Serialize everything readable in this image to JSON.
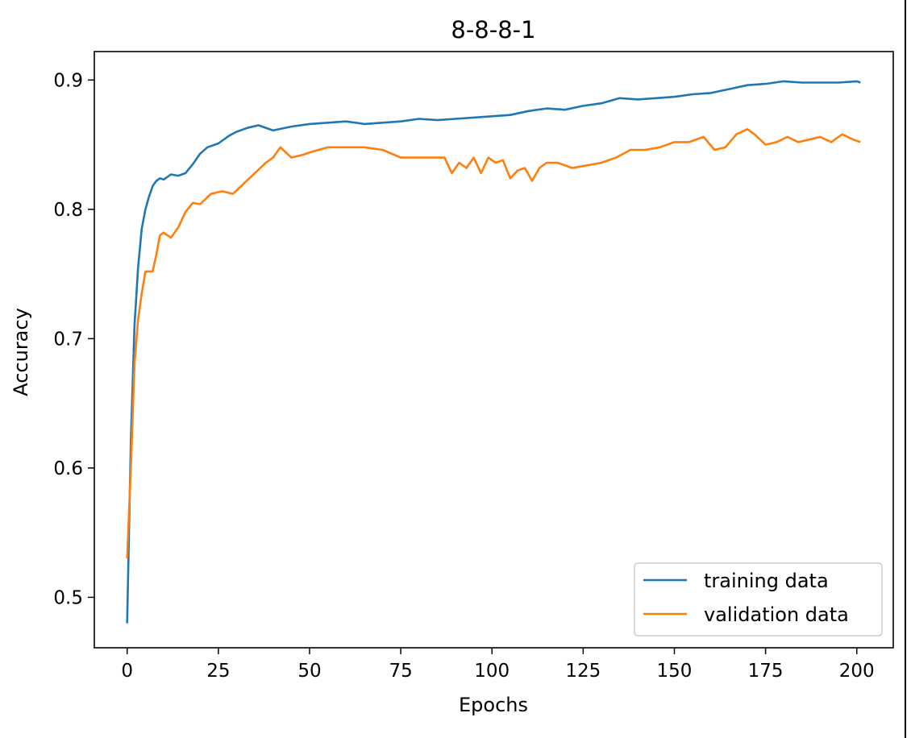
{
  "chart_data": {
    "type": "line",
    "title": "8-8-8-1",
    "xlabel": "Epochs",
    "ylabel": "Accuracy",
    "xlim": [
      -9,
      210
    ],
    "ylim": [
      0.461,
      0.922
    ],
    "xticks": [
      "0",
      "25",
      "50",
      "75",
      "100",
      "125",
      "150",
      "175",
      "200"
    ],
    "yticks": [
      "0.5",
      "0.6",
      "0.7",
      "0.8",
      "0.9"
    ],
    "legend_position": "lower-right",
    "colors": {
      "training": "#1f77b4",
      "validation": "#ff7f0e"
    },
    "series": [
      {
        "name": "training data",
        "points": [
          [
            0,
            0.48
          ],
          [
            1,
            0.62
          ],
          [
            2,
            0.71
          ],
          [
            3,
            0.755
          ],
          [
            4,
            0.785
          ],
          [
            5,
            0.8
          ],
          [
            6,
            0.81
          ],
          [
            7,
            0.818
          ],
          [
            8,
            0.822
          ],
          [
            9,
            0.824
          ],
          [
            10,
            0.823
          ],
          [
            12,
            0.827
          ],
          [
            14,
            0.826
          ],
          [
            16,
            0.828
          ],
          [
            18,
            0.835
          ],
          [
            20,
            0.843
          ],
          [
            22,
            0.848
          ],
          [
            25,
            0.851
          ],
          [
            28,
            0.857
          ],
          [
            30,
            0.86
          ],
          [
            33,
            0.863
          ],
          [
            36,
            0.865
          ],
          [
            40,
            0.861
          ],
          [
            45,
            0.864
          ],
          [
            50,
            0.866
          ],
          [
            55,
            0.867
          ],
          [
            60,
            0.868
          ],
          [
            65,
            0.866
          ],
          [
            70,
            0.867
          ],
          [
            75,
            0.868
          ],
          [
            80,
            0.87
          ],
          [
            85,
            0.869
          ],
          [
            90,
            0.87
          ],
          [
            95,
            0.871
          ],
          [
            100,
            0.872
          ],
          [
            105,
            0.873
          ],
          [
            110,
            0.876
          ],
          [
            115,
            0.878
          ],
          [
            120,
            0.877
          ],
          [
            125,
            0.88
          ],
          [
            130,
            0.882
          ],
          [
            135,
            0.886
          ],
          [
            140,
            0.885
          ],
          [
            145,
            0.886
          ],
          [
            150,
            0.887
          ],
          [
            155,
            0.889
          ],
          [
            160,
            0.89
          ],
          [
            165,
            0.893
          ],
          [
            170,
            0.896
          ],
          [
            175,
            0.897
          ],
          [
            180,
            0.899
          ],
          [
            185,
            0.898
          ],
          [
            190,
            0.898
          ],
          [
            195,
            0.898
          ],
          [
            200,
            0.899
          ],
          [
            201,
            0.898
          ]
        ]
      },
      {
        "name": "validation data",
        "points": [
          [
            0,
            0.53
          ],
          [
            1,
            0.6
          ],
          [
            2,
            0.68
          ],
          [
            3,
            0.715
          ],
          [
            4,
            0.735
          ],
          [
            5,
            0.752
          ],
          [
            6,
            0.752
          ],
          [
            7,
            0.752
          ],
          [
            8,
            0.765
          ],
          [
            9,
            0.78
          ],
          [
            10,
            0.782
          ],
          [
            12,
            0.778
          ],
          [
            14,
            0.786
          ],
          [
            16,
            0.798
          ],
          [
            18,
            0.805
          ],
          [
            20,
            0.804
          ],
          [
            23,
            0.812
          ],
          [
            26,
            0.814
          ],
          [
            29,
            0.812
          ],
          [
            32,
            0.82
          ],
          [
            35,
            0.828
          ],
          [
            38,
            0.836
          ],
          [
            40,
            0.84
          ],
          [
            42,
            0.848
          ],
          [
            45,
            0.84
          ],
          [
            48,
            0.842
          ],
          [
            50,
            0.844
          ],
          [
            55,
            0.848
          ],
          [
            60,
            0.848
          ],
          [
            65,
            0.848
          ],
          [
            70,
            0.846
          ],
          [
            75,
            0.84
          ],
          [
            80,
            0.84
          ],
          [
            85,
            0.84
          ],
          [
            87,
            0.84
          ],
          [
            89,
            0.828
          ],
          [
            91,
            0.836
          ],
          [
            93,
            0.832
          ],
          [
            95,
            0.84
          ],
          [
            97,
            0.828
          ],
          [
            99,
            0.84
          ],
          [
            101,
            0.836
          ],
          [
            103,
            0.838
          ],
          [
            105,
            0.824
          ],
          [
            107,
            0.83
          ],
          [
            109,
            0.832
          ],
          [
            111,
            0.822
          ],
          [
            113,
            0.832
          ],
          [
            115,
            0.836
          ],
          [
            118,
            0.836
          ],
          [
            122,
            0.832
          ],
          [
            126,
            0.834
          ],
          [
            130,
            0.836
          ],
          [
            134,
            0.84
          ],
          [
            138,
            0.846
          ],
          [
            142,
            0.846
          ],
          [
            146,
            0.848
          ],
          [
            150,
            0.852
          ],
          [
            154,
            0.852
          ],
          [
            158,
            0.856
          ],
          [
            161,
            0.846
          ],
          [
            164,
            0.848
          ],
          [
            167,
            0.858
          ],
          [
            170,
            0.862
          ],
          [
            172,
            0.858
          ],
          [
            175,
            0.85
          ],
          [
            178,
            0.852
          ],
          [
            181,
            0.856
          ],
          [
            184,
            0.852
          ],
          [
            187,
            0.854
          ],
          [
            190,
            0.856
          ],
          [
            193,
            0.852
          ],
          [
            196,
            0.858
          ],
          [
            199,
            0.854
          ],
          [
            201,
            0.852
          ]
        ]
      }
    ]
  }
}
